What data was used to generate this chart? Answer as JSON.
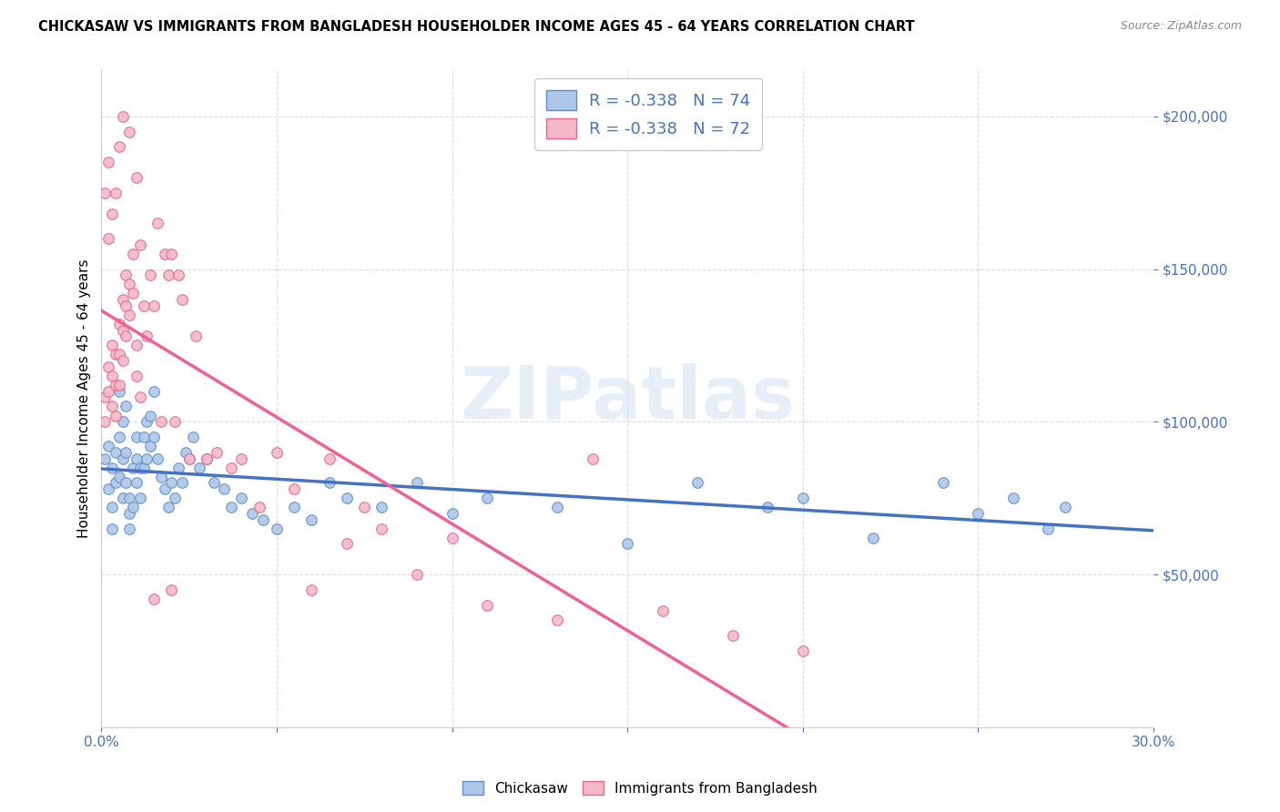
{
  "title": "CHICKASAW VS IMMIGRANTS FROM BANGLADESH HOUSEHOLDER INCOME AGES 45 - 64 YEARS CORRELATION CHART",
  "source": "Source: ZipAtlas.com",
  "ylabel": "Householder Income Ages 45 - 64 years",
  "y_ticks": [
    50000,
    100000,
    150000,
    200000
  ],
  "y_tick_labels": [
    "$50,000",
    "$100,000",
    "$150,000",
    "$200,000"
  ],
  "x_range": [
    0.0,
    0.3
  ],
  "y_range": [
    0,
    215000
  ],
  "x_ticks": [
    0.0,
    0.05,
    0.1,
    0.15,
    0.2,
    0.25,
    0.3
  ],
  "x_tick_labels": [
    "0.0%",
    "",
    "",
    "",
    "",
    "",
    "30.0%"
  ],
  "chickasaw_color": "#aec6e8",
  "bangladesh_color": "#f4b8c8",
  "chickasaw_edge_color": "#5b8fcc",
  "bangladesh_edge_color": "#e06888",
  "chickasaw_line_color": "#4472c4",
  "bangladesh_line_color": "#f06090",
  "chickasaw_R": "-0.338",
  "chickasaw_N": 74,
  "bangladesh_R": "-0.338",
  "bangladesh_N": 72,
  "watermark": "ZIPatlas",
  "tick_color": "#4472c4",
  "legend_label_color": "#4472c4",
  "chickasaw_scatter_x": [
    0.001,
    0.002,
    0.002,
    0.003,
    0.003,
    0.003,
    0.004,
    0.004,
    0.005,
    0.005,
    0.005,
    0.006,
    0.006,
    0.006,
    0.007,
    0.007,
    0.007,
    0.008,
    0.008,
    0.008,
    0.009,
    0.009,
    0.01,
    0.01,
    0.01,
    0.011,
    0.011,
    0.012,
    0.012,
    0.013,
    0.013,
    0.014,
    0.014,
    0.015,
    0.015,
    0.016,
    0.017,
    0.018,
    0.019,
    0.02,
    0.021,
    0.022,
    0.023,
    0.024,
    0.025,
    0.026,
    0.028,
    0.03,
    0.032,
    0.035,
    0.037,
    0.04,
    0.043,
    0.046,
    0.05,
    0.055,
    0.06,
    0.065,
    0.07,
    0.08,
    0.09,
    0.1,
    0.11,
    0.13,
    0.15,
    0.17,
    0.19,
    0.2,
    0.22,
    0.24,
    0.25,
    0.26,
    0.27,
    0.275
  ],
  "chickasaw_scatter_y": [
    88000,
    92000,
    78000,
    85000,
    72000,
    65000,
    90000,
    80000,
    110000,
    95000,
    82000,
    100000,
    88000,
    75000,
    105000,
    90000,
    80000,
    75000,
    70000,
    65000,
    85000,
    72000,
    95000,
    88000,
    80000,
    85000,
    75000,
    95000,
    85000,
    100000,
    88000,
    102000,
    92000,
    110000,
    95000,
    88000,
    82000,
    78000,
    72000,
    80000,
    75000,
    85000,
    80000,
    90000,
    88000,
    95000,
    85000,
    88000,
    80000,
    78000,
    72000,
    75000,
    70000,
    68000,
    65000,
    72000,
    68000,
    80000,
    75000,
    72000,
    80000,
    70000,
    75000,
    72000,
    60000,
    80000,
    72000,
    75000,
    62000,
    80000,
    70000,
    75000,
    65000,
    72000
  ],
  "bangladesh_scatter_x": [
    0.001,
    0.001,
    0.002,
    0.002,
    0.003,
    0.003,
    0.003,
    0.004,
    0.004,
    0.004,
    0.005,
    0.005,
    0.005,
    0.006,
    0.006,
    0.006,
    0.007,
    0.007,
    0.007,
    0.008,
    0.008,
    0.009,
    0.009,
    0.01,
    0.01,
    0.011,
    0.011,
    0.012,
    0.013,
    0.014,
    0.015,
    0.016,
    0.017,
    0.018,
    0.019,
    0.02,
    0.021,
    0.022,
    0.023,
    0.025,
    0.027,
    0.03,
    0.033,
    0.037,
    0.04,
    0.045,
    0.05,
    0.055,
    0.06,
    0.065,
    0.07,
    0.075,
    0.08,
    0.09,
    0.1,
    0.11,
    0.13,
    0.14,
    0.16,
    0.18,
    0.2,
    0.01,
    0.008,
    0.006,
    0.005,
    0.004,
    0.003,
    0.002,
    0.002,
    0.001,
    0.02,
    0.015
  ],
  "bangladesh_scatter_y": [
    108000,
    100000,
    118000,
    110000,
    125000,
    115000,
    105000,
    122000,
    112000,
    102000,
    132000,
    122000,
    112000,
    140000,
    130000,
    120000,
    148000,
    138000,
    128000,
    145000,
    135000,
    155000,
    142000,
    125000,
    115000,
    158000,
    108000,
    138000,
    128000,
    148000,
    138000,
    165000,
    100000,
    155000,
    148000,
    155000,
    100000,
    148000,
    140000,
    88000,
    128000,
    88000,
    90000,
    85000,
    88000,
    72000,
    90000,
    78000,
    45000,
    88000,
    60000,
    72000,
    65000,
    50000,
    62000,
    40000,
    35000,
    88000,
    38000,
    30000,
    25000,
    180000,
    195000,
    200000,
    190000,
    175000,
    168000,
    185000,
    160000,
    175000,
    45000,
    42000
  ]
}
